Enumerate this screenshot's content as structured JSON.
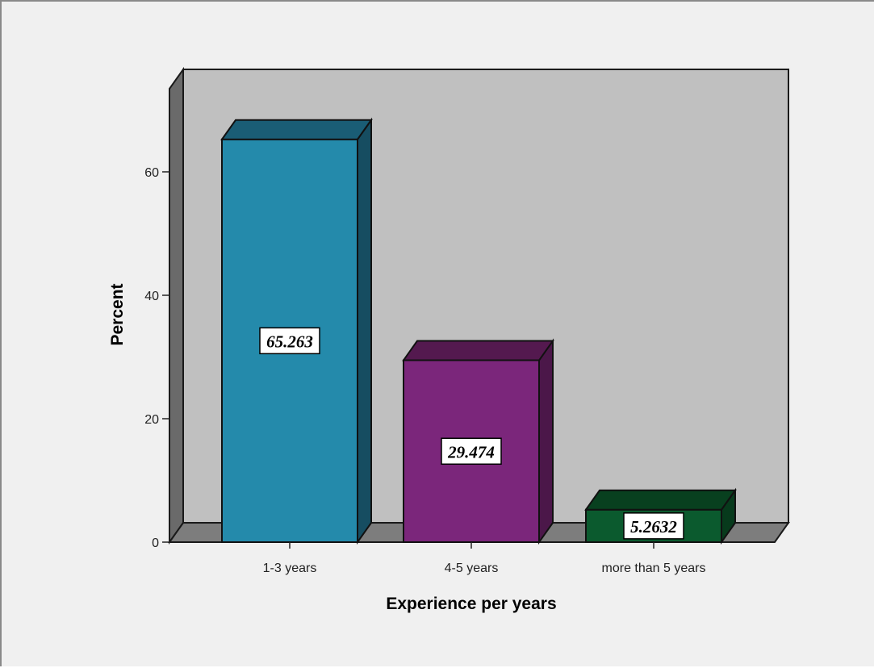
{
  "chart_data": {
    "type": "bar",
    "style": "3d",
    "title": "",
    "xlabel": "Experience per years",
    "ylabel": "Percent",
    "categories": [
      "1-3 years",
      "4-5 years",
      "more than 5 years"
    ],
    "values": [
      65.263,
      29.474,
      5.2632
    ],
    "data_labels": [
      "65.263",
      "29.474",
      "5.2632"
    ],
    "colors": [
      "#248aab",
      "#7b267b",
      "#0b5a2e"
    ],
    "side_colors": [
      "#164d61",
      "#4b1749",
      "#073a1c"
    ],
    "top_colors": [
      "#1a5d75",
      "#54194f",
      "#08401f"
    ],
    "ylim": [
      0,
      74
    ],
    "yticks": [
      0,
      20,
      40,
      60
    ],
    "ytick_labels": [
      "0",
      "20",
      "40",
      "60"
    ],
    "grid": false,
    "legend": "none",
    "plot_background": "#c0c0c0",
    "floor_color": "#7d7d7d",
    "wall_side_color": "#6a6a6a",
    "page_background": "#f0f0f0"
  }
}
